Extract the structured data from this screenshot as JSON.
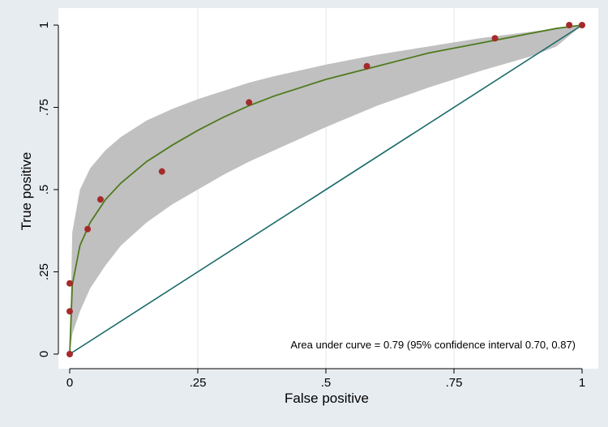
{
  "chart_data": {
    "type": "scatter",
    "xlabel": "False positive",
    "ylabel": "True positive",
    "xlim": [
      0,
      1
    ],
    "ylim": [
      0,
      1
    ],
    "x_ticks": [
      0,
      0.25,
      0.5,
      0.75,
      1
    ],
    "x_tick_labels": [
      "0",
      ".25",
      ".5",
      ".75",
      "1"
    ],
    "y_ticks": [
      0,
      0.25,
      0.5,
      0.75,
      1
    ],
    "y_tick_labels": [
      "0",
      ".25",
      ".5",
      ".75",
      "1"
    ],
    "grid": true,
    "annotation": "Area under curve = 0.79 (95% confidence interval 0.70, 0.87)",
    "series": [
      {
        "type": "scatter",
        "x": [
          0,
          0,
          0,
          0.035,
          0.06,
          0.18,
          0.35,
          0.58,
          0.83,
          0.975,
          1.0
        ],
        "y": [
          0,
          0.13,
          0.215,
          0.38,
          0.47,
          0.555,
          0.765,
          0.875,
          0.96,
          1.0,
          1.0
        ]
      },
      {
        "type": "line",
        "x": [
          0,
          0.005,
          0.02,
          0.04,
          0.07,
          0.1,
          0.15,
          0.2,
          0.25,
          0.3,
          0.35,
          0.4,
          0.5,
          0.6,
          0.7,
          0.8,
          0.9,
          0.95,
          1.0
        ],
        "y": [
          0,
          0.21,
          0.33,
          0.4,
          0.47,
          0.52,
          0.585,
          0.635,
          0.68,
          0.72,
          0.755,
          0.785,
          0.835,
          0.875,
          0.915,
          0.945,
          0.975,
          0.99,
          1.0
        ]
      },
      {
        "type": "line",
        "x": [
          0,
          1
        ],
        "y": [
          0,
          1
        ]
      },
      {
        "type": "area",
        "x": [
          0,
          0.005,
          0.02,
          0.04,
          0.07,
          0.1,
          0.15,
          0.2,
          0.25,
          0.3,
          0.35,
          0.4,
          0.5,
          0.6,
          0.7,
          0.8,
          0.9,
          0.95,
          1.0
        ],
        "upper": [
          0,
          0.37,
          0.5,
          0.565,
          0.62,
          0.66,
          0.71,
          0.745,
          0.775,
          0.8,
          0.825,
          0.845,
          0.88,
          0.91,
          0.935,
          0.96,
          0.98,
          0.99,
          1.0
        ],
        "lower": [
          0,
          0.06,
          0.13,
          0.2,
          0.27,
          0.33,
          0.4,
          0.455,
          0.5,
          0.545,
          0.585,
          0.62,
          0.69,
          0.755,
          0.81,
          0.86,
          0.905,
          0.935,
          1.0
        ]
      }
    ],
    "colors": {
      "background": "#e7ecf1",
      "plot_background": "#ffffff",
      "band": "#c0c0c0",
      "fit_line": "#4f7a1e",
      "diagonal": "#1b6a6a",
      "points": "#a52a2a",
      "grid": "#dfe8e8"
    }
  }
}
